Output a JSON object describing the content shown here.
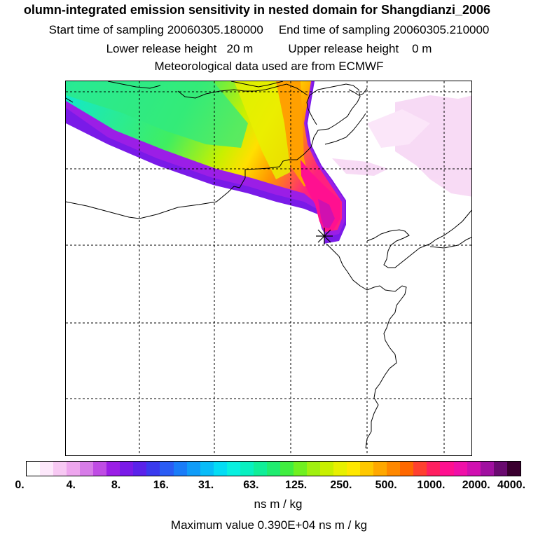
{
  "title": {
    "line1": "olumn-integrated emission sensitivity in nested domain for Shangdianzi_2006",
    "start_time": "Start time of sampling 20060305.180000",
    "end_time": "End time of sampling 20060305.210000",
    "lower_height": "Lower release height   20 m",
    "upper_height": "Upper release height    0 m",
    "met_data": "Meteorological data used are from ECMWF"
  },
  "colorbar": {
    "ticks": [
      "0.",
      "4.",
      "8.",
      "16.",
      "31.",
      "63.",
      "125.",
      "250.",
      "500.",
      "1000.",
      "2000.",
      "4000."
    ],
    "units": "ns m / kg",
    "colors": [
      "#ffffff",
      "#fde8fb",
      "#f7c8f3",
      "#eea6ee",
      "#d77ce8",
      "#bf4ce4",
      "#9b1ee6",
      "#7a1ae8",
      "#5a22ea",
      "#3a3aee",
      "#2a5cf4",
      "#1a7cf8",
      "#109cf8",
      "#08bcf8",
      "#04dcf4",
      "#08f0e0",
      "#08f0c0",
      "#10ee98",
      "#20ec70",
      "#40ee40",
      "#70f020",
      "#a0f010",
      "#c8f000",
      "#e8f000",
      "#ffe800",
      "#ffc800",
      "#ffa800",
      "#ff8800",
      "#ff6800",
      "#ff4030",
      "#ff2060",
      "#ff1090",
      "#f010a8",
      "#d010b0",
      "#a010a0",
      "#6a0a70",
      "#3a0030"
    ]
  },
  "map": {
    "max_value_text": "Maximum value  0.390E+04 ns m / kg",
    "receptor_marker": "receptor-star"
  }
}
